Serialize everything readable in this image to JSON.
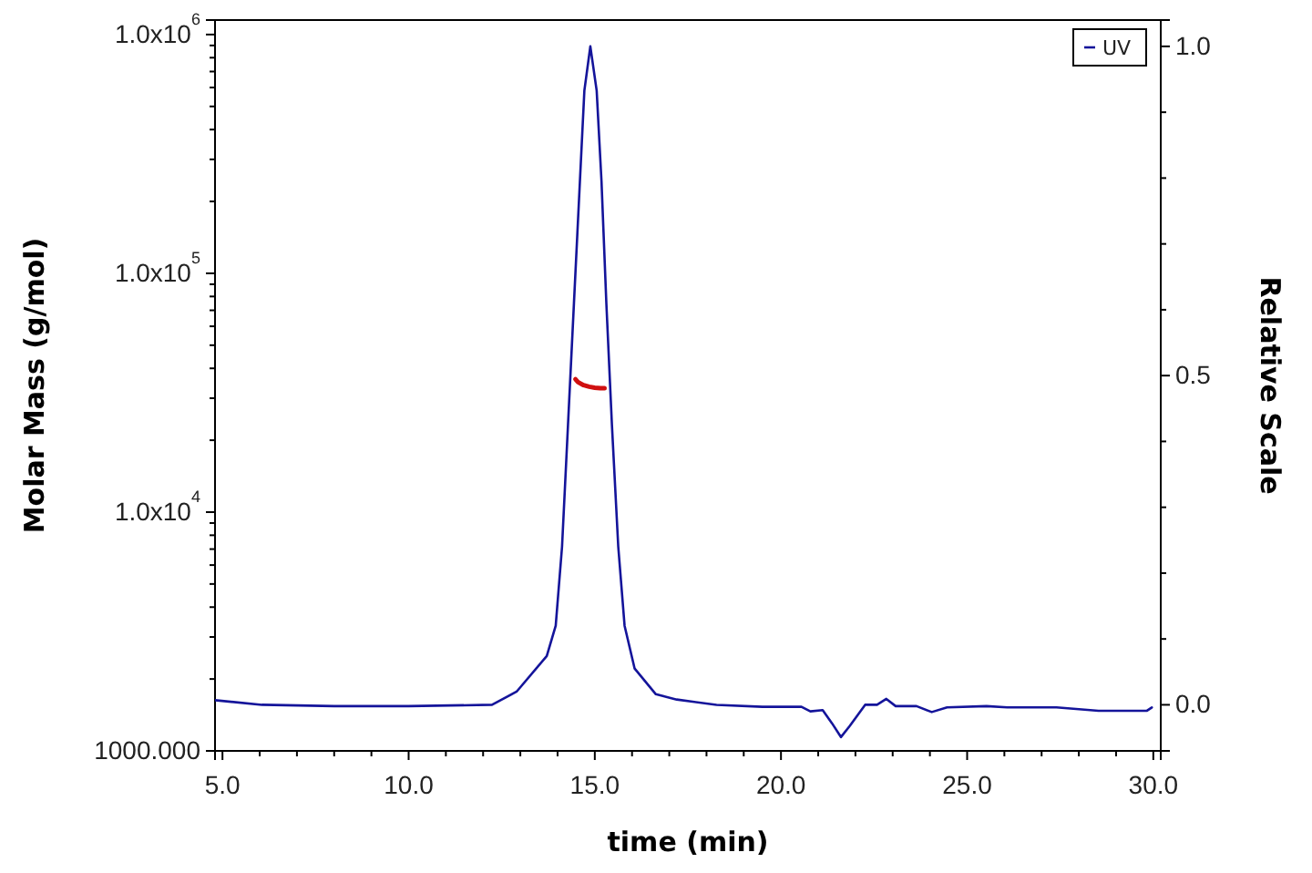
{
  "chart_data": {
    "type": "line",
    "xlabel": "time (min)",
    "ylabel": "Molar Mass (g/mol)",
    "y2label": "Relative Scale",
    "log": "y",
    "grid": false,
    "legend": "top right",
    "marker": "none",
    "line_style": "solid",
    "xlim": [
      4.8,
      30.2
    ],
    "xticks": [
      {
        "value": 5,
        "label": "5.0"
      },
      {
        "value": 6,
        "label": null
      },
      {
        "value": 7,
        "label": null
      },
      {
        "value": 8,
        "label": null
      },
      {
        "value": 9,
        "label": null
      },
      {
        "value": 10,
        "label": "10.0"
      },
      {
        "value": 11,
        "label": null
      },
      {
        "value": 12,
        "label": null
      },
      {
        "value": 13,
        "label": null
      },
      {
        "value": 14,
        "label": null
      },
      {
        "value": 15,
        "label": "15.0"
      },
      {
        "value": 16,
        "label": null
      },
      {
        "value": 17,
        "label": null
      },
      {
        "value": 18,
        "label": null
      },
      {
        "value": 19,
        "label": null
      },
      {
        "value": 20,
        "label": "20.0"
      },
      {
        "value": 21,
        "label": null
      },
      {
        "value": 22,
        "label": null
      },
      {
        "value": 23,
        "label": null
      },
      {
        "value": 24,
        "label": null
      },
      {
        "value": 25,
        "label": "25.0"
      },
      {
        "value": 26,
        "label": null
      },
      {
        "value": 27,
        "label": null
      },
      {
        "value": 28,
        "label": null
      },
      {
        "value": 29,
        "label": null
      },
      {
        "value": 30,
        "label": "30.0"
      }
    ],
    "ylim": [
      1000,
      1150000
    ],
    "yticks": [
      {
        "value": 1000,
        "label": "1000.000"
      },
      {
        "value": 2000,
        "label": null
      },
      {
        "value": 3000,
        "label": null
      },
      {
        "value": 4000,
        "label": null
      },
      {
        "value": 5000,
        "label": null
      },
      {
        "value": 6000,
        "label": null
      },
      {
        "value": 7000,
        "label": null
      },
      {
        "value": 8000,
        "label": null
      },
      {
        "value": 9000,
        "label": null
      },
      {
        "value": 10000,
        "label": "1.0x10$^{4}$"
      },
      {
        "value": 20000,
        "label": null
      },
      {
        "value": 30000,
        "label": null
      },
      {
        "value": 40000,
        "label": null
      },
      {
        "value": 50000,
        "label": null
      },
      {
        "value": 60000,
        "label": null
      },
      {
        "value": 70000,
        "label": null
      },
      {
        "value": 80000,
        "label": null
      },
      {
        "value": 90000,
        "label": null
      },
      {
        "value": 100000,
        "label": "1.0x10$^{5}$"
      },
      {
        "value": 200000,
        "label": null
      },
      {
        "value": 300000,
        "label": null
      },
      {
        "value": 400000,
        "label": null
      },
      {
        "value": 500000,
        "label": null
      },
      {
        "value": 600000,
        "label": null
      },
      {
        "value": 700000,
        "label": null
      },
      {
        "value": 800000,
        "label": null
      },
      {
        "value": 900000,
        "label": null
      },
      {
        "value": 1000000,
        "label": "1.0x10$^{6}$"
      }
    ],
    "y2lim": [
      -0.07,
      1.04
    ],
    "y2ticks": [
      {
        "value": 0,
        "label": "0.0"
      },
      {
        "value": 0.1,
        "label": null
      },
      {
        "value": 0.2,
        "label": null
      },
      {
        "value": 0.3,
        "label": null
      },
      {
        "value": 0.4,
        "label": null
      },
      {
        "value": 0.5,
        "label": "0.5"
      },
      {
        "value": 0.6,
        "label": null
      },
      {
        "value": 0.7,
        "label": null
      },
      {
        "value": 0.8,
        "label": null
      },
      {
        "value": 0.9,
        "label": null
      },
      {
        "value": 1,
        "label": "1.0"
      }
    ],
    "series": [
      {
        "name": "UV",
        "color": "#14149a",
        "axis": "y2",
        "x": [
          4.8,
          6.06,
          8,
          10,
          12.24,
          12.9,
          13.71,
          13.95,
          14.12,
          14.28,
          14.44,
          14.6,
          14.72,
          14.88,
          15.05,
          15.18,
          15.31,
          15.46,
          15.63,
          15.8,
          16.07,
          16.64,
          17.2,
          18.27,
          19.5,
          20.55,
          20.79,
          21.12,
          21.37,
          21.61,
          21.85,
          22.26,
          22.58,
          22.83,
          23.08,
          23.64,
          24.05,
          24.46,
          25.52,
          26.08,
          27.4,
          28.53,
          29.83,
          29.96
        ],
        "values": [
          0.007,
          0.0,
          -0.002,
          -0.002,
          0.0,
          0.02,
          0.074,
          0.12,
          0.24,
          0.425,
          0.61,
          0.795,
          0.933,
          1.0,
          0.933,
          0.795,
          0.61,
          0.425,
          0.24,
          0.12,
          0.055,
          0.016,
          0.008,
          0.0,
          -0.003,
          -0.003,
          -0.01,
          -0.008,
          -0.028,
          -0.049,
          -0.032,
          0.0,
          0.0,
          0.009,
          -0.002,
          -0.002,
          -0.011,
          -0.004,
          -0.002,
          -0.004,
          -0.004,
          -0.009,
          -0.009,
          -0.004
        ]
      },
      {
        "color": "#d01010",
        "axis": "y",
        "x": [
          14.48,
          14.55,
          14.7,
          14.85,
          15.0,
          15.15,
          15.26
        ],
        "values": [
          36000,
          35000,
          34000,
          33500,
          33200,
          33000,
          33000
        ]
      }
    ]
  }
}
